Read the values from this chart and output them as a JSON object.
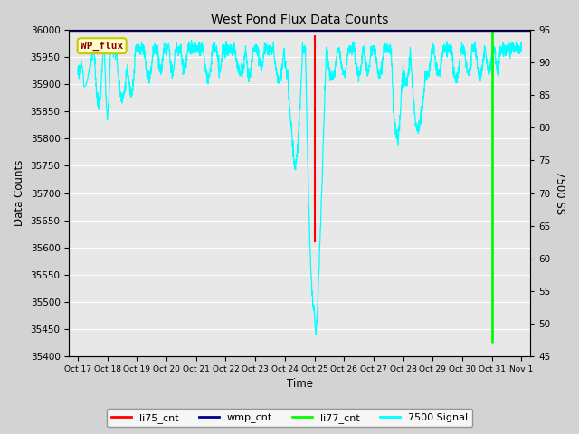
{
  "title": "West Pond Flux Data Counts",
  "xlabel": "Time",
  "ylabel": "Data Counts",
  "ylabel_right": "7500 SS",
  "ylim_left": [
    35400,
    36000
  ],
  "ylim_right": [
    45,
    95
  ],
  "fig_bg_color": "#d3d3d3",
  "plot_bg_color": "#e8e8e8",
  "annotation_box": {
    "text": "WP_flux",
    "facecolor": "#ffffcc",
    "edgecolor": "#c8c800",
    "textcolor": "#8b0000",
    "fontsize": 8
  },
  "legend_entries": [
    "li75_cnt",
    "wmp_cnt",
    "li77_cnt",
    "7500 Signal"
  ],
  "legend_colors": [
    "red",
    "#00008b",
    "lime",
    "cyan"
  ],
  "xtick_labels": [
    "Oct 17",
    "Oct 18",
    "Oct 19",
    "Oct 20",
    "Oct 21",
    "Oct 22",
    "Oct 23",
    "Oct 24",
    "Oct 25",
    "Oct 26",
    "Oct 27",
    "Oct 28",
    "Oct 29",
    "Oct 30",
    "Oct 31",
    "Nov 1"
  ],
  "grid_color": "white",
  "line_li75_color": "red",
  "line_wmp_color": "#00008b",
  "line_li77_color": "lime",
  "line_7500_color": "cyan"
}
